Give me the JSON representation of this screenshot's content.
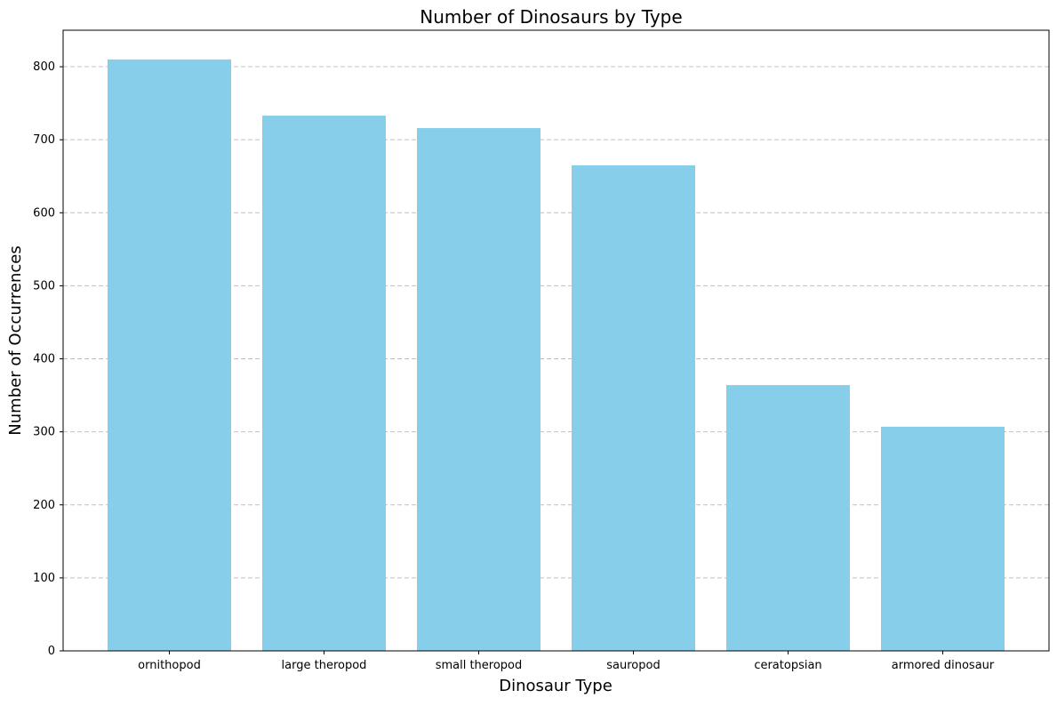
{
  "chart_data": {
    "type": "bar",
    "title": "Number of Dinosaurs by Type",
    "xlabel": "Dinosaur Type",
    "ylabel": "Number of Occurrences",
    "categories": [
      "ornithopod",
      "large theropod",
      "small theropod",
      "sauropod",
      "ceratopsian",
      "armored dinosaur"
    ],
    "values": [
      810,
      733,
      716,
      665,
      364,
      307
    ],
    "ylim": [
      0,
      850
    ],
    "yticks": [
      0,
      100,
      200,
      300,
      400,
      500,
      600,
      700,
      800
    ],
    "grid": "y-dashed",
    "bar_color": "#87CEEB",
    "grid_color": "#c0c0c0"
  }
}
